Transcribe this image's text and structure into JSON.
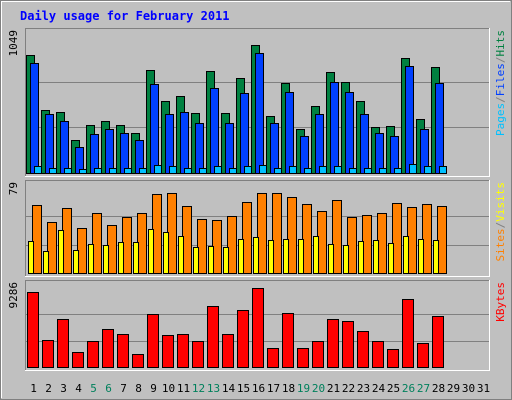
{
  "chart_data": {
    "type": "bar",
    "title": "Daily usage for February 2011",
    "colors": {
      "background": "#c0c0c0",
      "title": "#0000ff",
      "hits": "#008040",
      "files": "#0040ff",
      "pages": "#00c0ff",
      "visits": "#ffff00",
      "sites": "#ff8000",
      "kbytes": "#ff0000",
      "weekday_label": "#000000",
      "weekend_label": "#00805c"
    },
    "x": [
      "1",
      "2",
      "3",
      "4",
      "5",
      "6",
      "7",
      "8",
      "9",
      "10",
      "11",
      "12",
      "13",
      "14",
      "15",
      "16",
      "17",
      "18",
      "19",
      "20",
      "21",
      "22",
      "23",
      "24",
      "25",
      "26",
      "27",
      "28",
      "29",
      "30",
      "31"
    ],
    "weekend_days": [
      "5",
      "6",
      "12",
      "13",
      "19",
      "20",
      "26",
      "27"
    ],
    "panels": [
      {
        "id": "hits-files-pages",
        "ymax_label": "1049",
        "ymax": 1049,
        "legend": [
          {
            "text": "Pages",
            "color": "#00c0ff"
          },
          {
            "text": "/",
            "color": "#808080"
          },
          {
            "text": "Files",
            "color": "#0040ff"
          },
          {
            "text": "/",
            "color": "#808080"
          },
          {
            "text": "Hits",
            "color": "#008040"
          }
        ],
        "series": [
          {
            "name": "Hits",
            "color": "#008040",
            "values": [
              900,
              480,
              470,
              250,
              370,
              400,
              370,
              310,
              790,
              550,
              590,
              460,
              780,
              460,
              730,
              980,
              440,
              690,
              340,
              510,
              770,
              700,
              550,
              350,
              360,
              880,
              410,
              810,
              0,
              0,
              0
            ]
          },
          {
            "name": "Files",
            "color": "#0040ff",
            "values": [
              840,
              450,
              400,
              200,
              300,
              340,
              310,
              250,
              680,
              450,
              470,
              380,
              650,
              380,
              610,
              920,
              380,
              620,
              280,
              450,
              700,
              620,
              450,
              310,
              280,
              820,
              340,
              690,
              0,
              0,
              0
            ]
          },
          {
            "name": "Pages",
            "color": "#00c0ff",
            "values": [
              50,
              40,
              40,
              30,
              40,
              40,
              40,
              40,
              60,
              50,
              40,
              40,
              50,
              40,
              50,
              60,
              40,
              50,
              40,
              50,
              50,
              40,
              40,
              40,
              40,
              70,
              50,
              50,
              0,
              0,
              0
            ]
          }
        ]
      },
      {
        "id": "visits-sites",
        "ymax_label": "79",
        "ymax": 79,
        "legend": [
          {
            "text": "Sites",
            "color": "#ff8000"
          },
          {
            "text": "/",
            "color": "#808080"
          },
          {
            "text": "Visits",
            "color": "#ffff00"
          }
        ],
        "series": [
          {
            "name": "Sites",
            "color": "#ff8000",
            "values": [
              63,
              47,
              60,
              42,
              56,
              45,
              52,
              56,
              73,
              74,
              62,
              50,
              49,
              53,
              66,
              74,
              74,
              71,
              64,
              58,
              68,
              52,
              54,
              56,
              65,
              61,
              64,
              62,
              0,
              0,
              0
            ]
          },
          {
            "name": "Visits",
            "color": "#ffff00",
            "values": [
              30,
              20,
              40,
              21,
              27,
              26,
              29,
              29,
              41,
              38,
              34,
              24,
              25,
              24,
              32,
              33,
              31,
              32,
              32,
              34,
              27,
              26,
              30,
              31,
              28,
              34,
              32,
              31,
              0,
              0,
              0
            ]
          }
        ]
      },
      {
        "id": "kbytes",
        "ymax_label": "9286",
        "ymax": 9286,
        "legend": [
          {
            "text": "KBytes",
            "color": "#ff0000"
          }
        ],
        "series": [
          {
            "name": "KBytes",
            "color": "#ff0000",
            "values": [
              8800,
              3200,
              5600,
              1800,
              3000,
              4500,
              3900,
              1500,
              6200,
              3800,
              3900,
              3000,
              7200,
              3900,
              6700,
              9286,
              2200,
              6400,
              2200,
              3000,
              5700,
              5400,
              4200,
              3000,
              2100,
              8000,
              2800,
              6000,
              0,
              0,
              0
            ]
          }
        ]
      }
    ]
  }
}
